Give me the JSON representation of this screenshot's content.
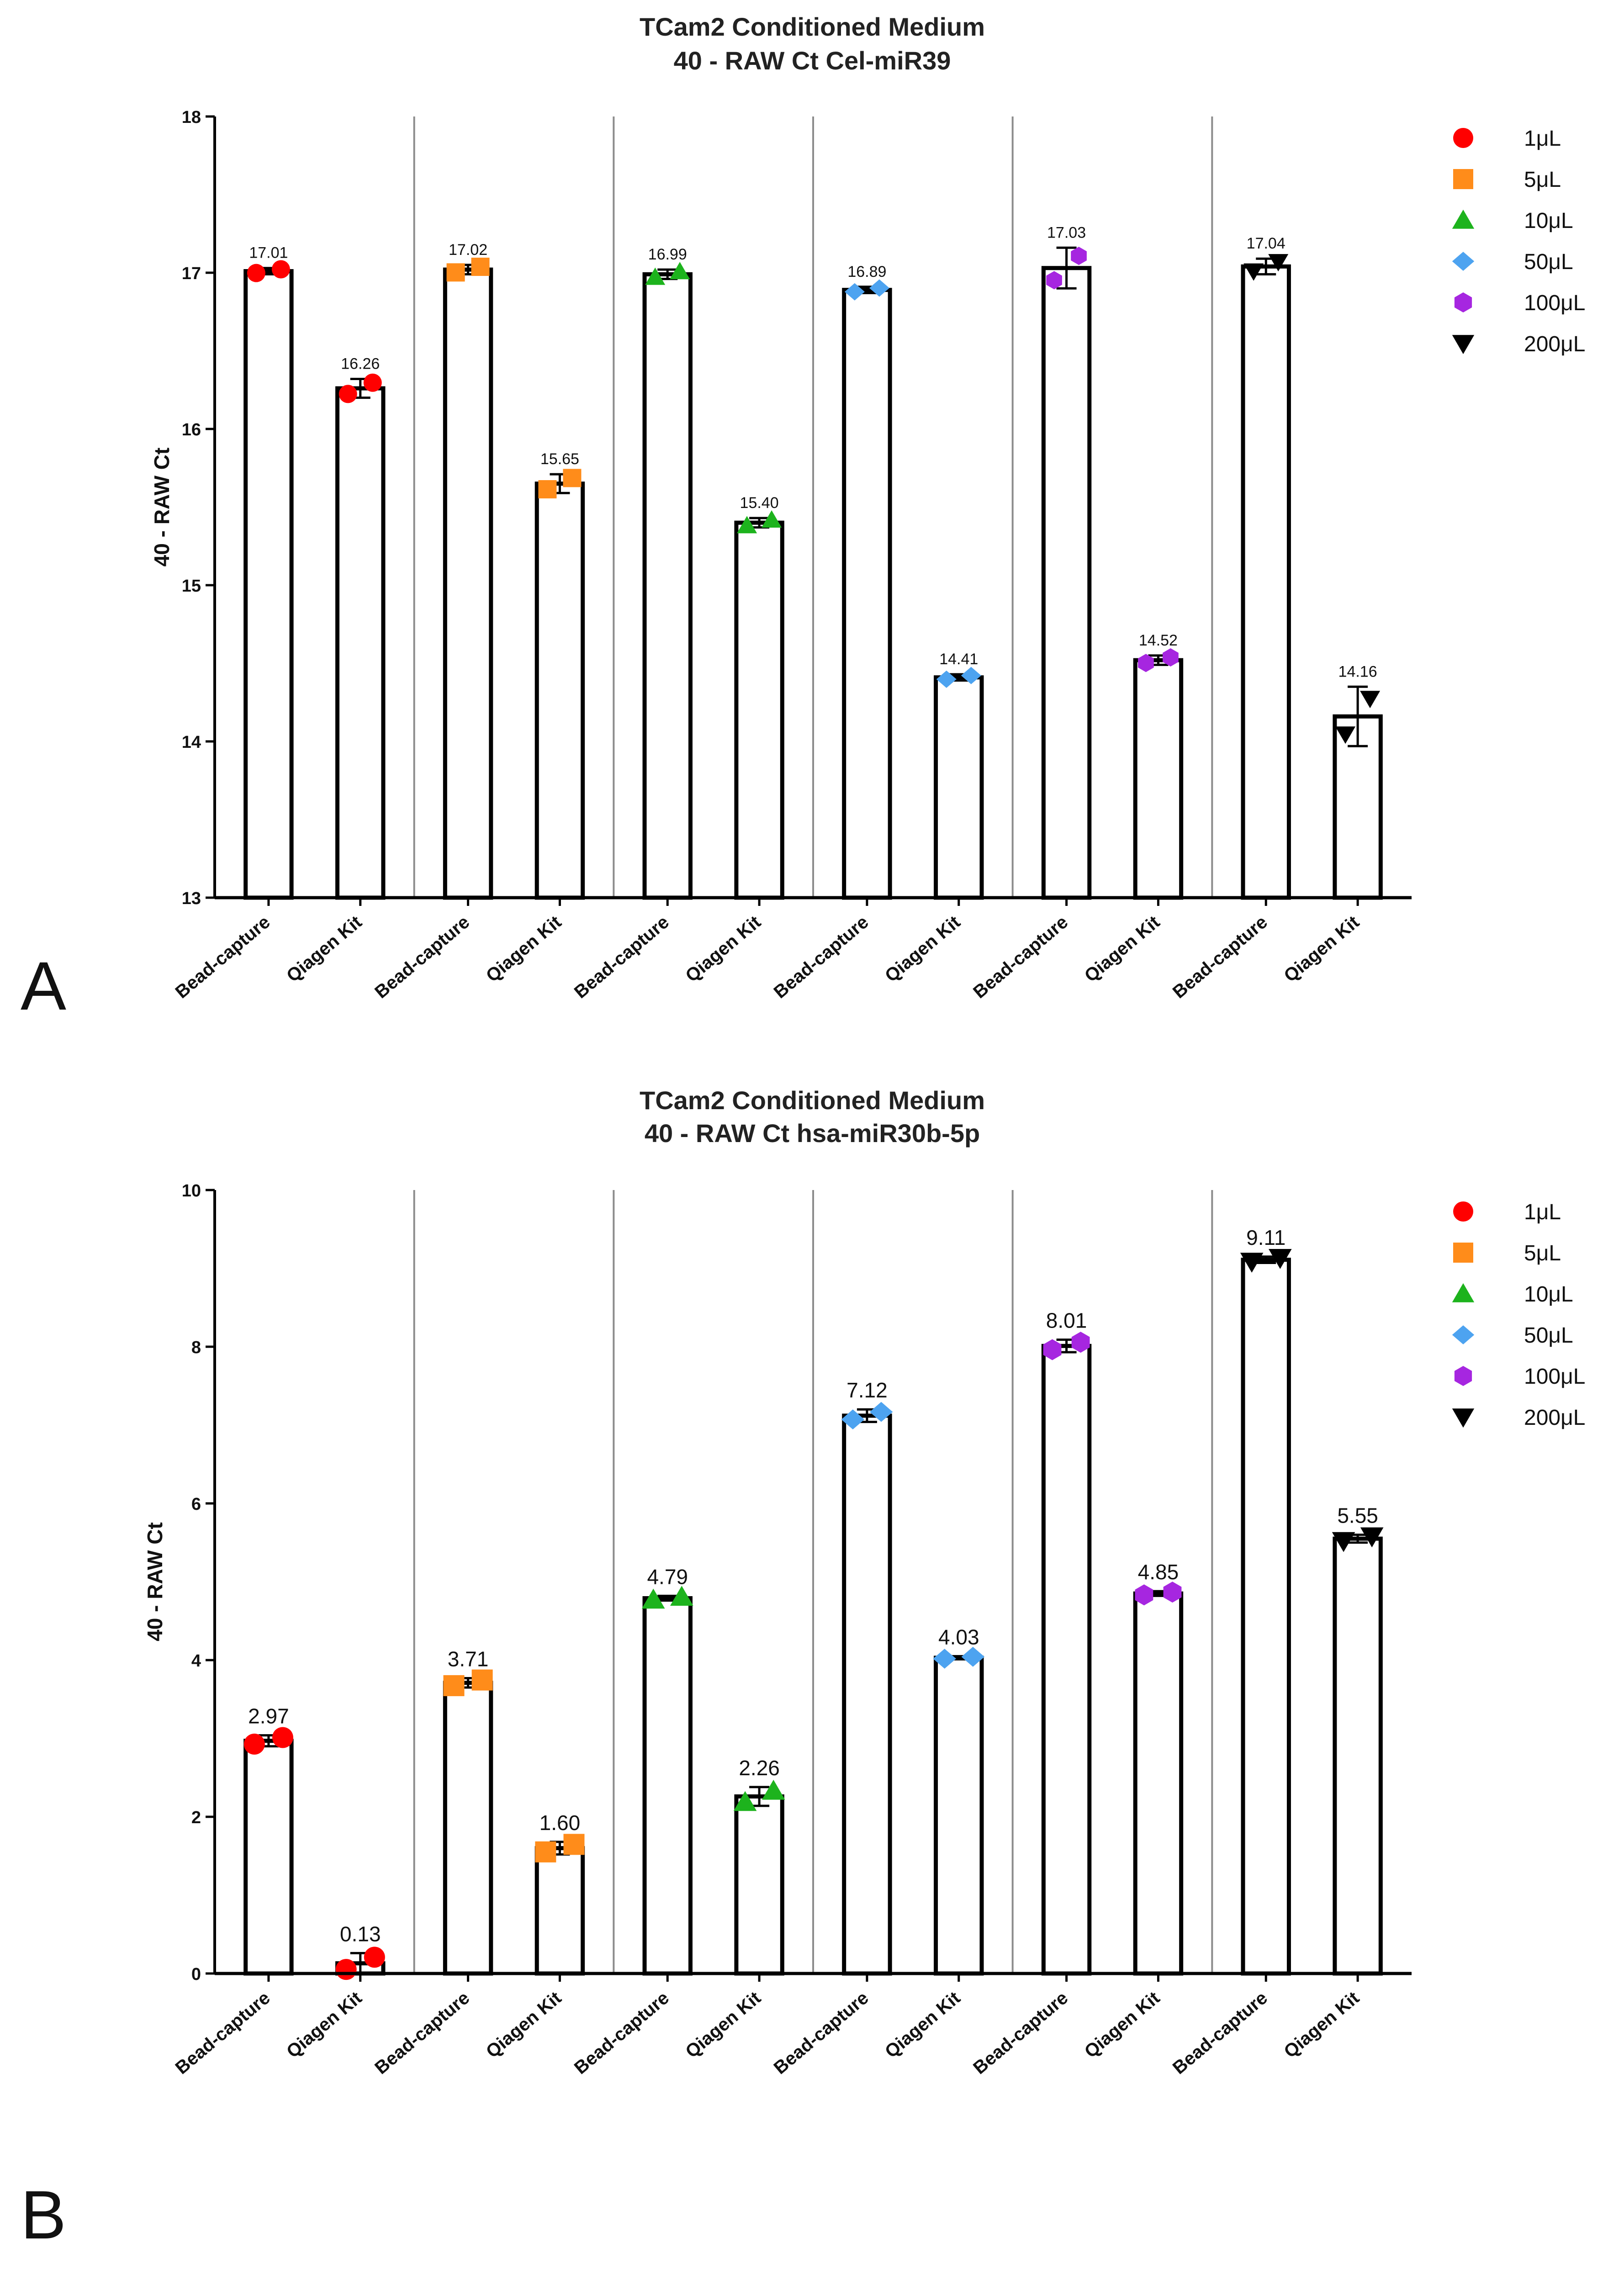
{
  "chart_data": [
    {
      "type": "bar",
      "panel": "A",
      "title_line1": "TCam2 Conditioned Medium",
      "title_line2": "40 - RAW Ct Cel-miR39",
      "xlabel": "",
      "ylabel": "40 - RAW Ct",
      "ylim": [
        13,
        18
      ],
      "yticks": [
        "13",
        "14",
        "15",
        "16",
        "17",
        "18"
      ],
      "groups": [
        "1μL",
        "5μL",
        "10μL",
        "50μL",
        "100μL",
        "200μL"
      ],
      "categories": [
        "Bead-capture",
        "Qiagen Kit"
      ],
      "series": [
        {
          "name": "1μL",
          "values": [
            17.01,
            16.26
          ],
          "labels": [
            "17.01",
            "16.26"
          ],
          "err": [
            0.02,
            0.06
          ]
        },
        {
          "name": "5μL",
          "values": [
            17.02,
            15.65
          ],
          "labels": [
            "17.02",
            "15.65"
          ],
          "err": [
            0.03,
            0.06
          ]
        },
        {
          "name": "10μL",
          "values": [
            16.99,
            15.4
          ],
          "labels": [
            "16.99",
            "15.40"
          ],
          "err": [
            0.03,
            0.03
          ]
        },
        {
          "name": "50μL",
          "values": [
            16.89,
            14.41
          ],
          "labels": [
            "16.89",
            "14.41"
          ],
          "err": [
            0.02,
            0.02
          ]
        },
        {
          "name": "100μL",
          "values": [
            17.03,
            14.52
          ],
          "labels": [
            "17.03",
            "14.52"
          ],
          "err": [
            0.13,
            0.03
          ]
        },
        {
          "name": "200μL",
          "values": [
            17.04,
            14.16
          ],
          "labels": [
            "17.04",
            "14.16"
          ],
          "err": [
            0.05,
            0.19
          ]
        }
      ],
      "legend_position": "right"
    },
    {
      "type": "bar",
      "panel": "B",
      "title_line1": "TCam2 Conditioned Medium",
      "title_line2": "40 - RAW Ct hsa-miR30b-5p",
      "xlabel": "",
      "ylabel": "40 - RAW Ct",
      "ylim": [
        0,
        10
      ],
      "yticks": [
        "0",
        "2",
        "4",
        "6",
        "8",
        "10"
      ],
      "groups": [
        "1μL",
        "5μL",
        "10μL",
        "50μL",
        "100μL",
        "200μL"
      ],
      "categories": [
        "Bead-capture",
        "Qiagen Kit"
      ],
      "series": [
        {
          "name": "1μL",
          "values": [
            2.97,
            0.13
          ],
          "labels": [
            "2.97",
            "0.13"
          ],
          "err": [
            0.07,
            0.13
          ]
        },
        {
          "name": "5μL",
          "values": [
            3.71,
            1.6
          ],
          "labels": [
            "3.71",
            "1.60"
          ],
          "err": [
            0.06,
            0.08
          ]
        },
        {
          "name": "10μL",
          "values": [
            4.79,
            2.26
          ],
          "labels": [
            "4.79",
            "2.26"
          ],
          "err": [
            0.03,
            0.12
          ]
        },
        {
          "name": "50μL",
          "values": [
            7.12,
            4.03
          ],
          "labels": [
            "7.12",
            "4.03"
          ],
          "err": [
            0.08,
            0.02
          ]
        },
        {
          "name": "100μL",
          "values": [
            8.01,
            4.85
          ],
          "labels": [
            "8.01",
            "4.85"
          ],
          "err": [
            0.08,
            0.03
          ]
        },
        {
          "name": "200μL",
          "values": [
            9.11,
            5.55
          ],
          "labels": [
            "9.11",
            "5.55"
          ],
          "err": [
            0.04,
            0.05
          ]
        }
      ],
      "legend_position": "right"
    }
  ],
  "legend": [
    {
      "label": "1μL",
      "color": "#ff0000",
      "shape": "circle"
    },
    {
      "label": "5μL",
      "color": "#ff8c1a",
      "shape": "square"
    },
    {
      "label": "10μL",
      "color": "#1db31d",
      "shape": "triangle-up"
    },
    {
      "label": "50μL",
      "color": "#4da3f0",
      "shape": "diamond"
    },
    {
      "label": "100μL",
      "color": "#a626e0",
      "shape": "hexagon"
    },
    {
      "label": "200μL",
      "color": "#000000",
      "shape": "triangle-down"
    }
  ]
}
